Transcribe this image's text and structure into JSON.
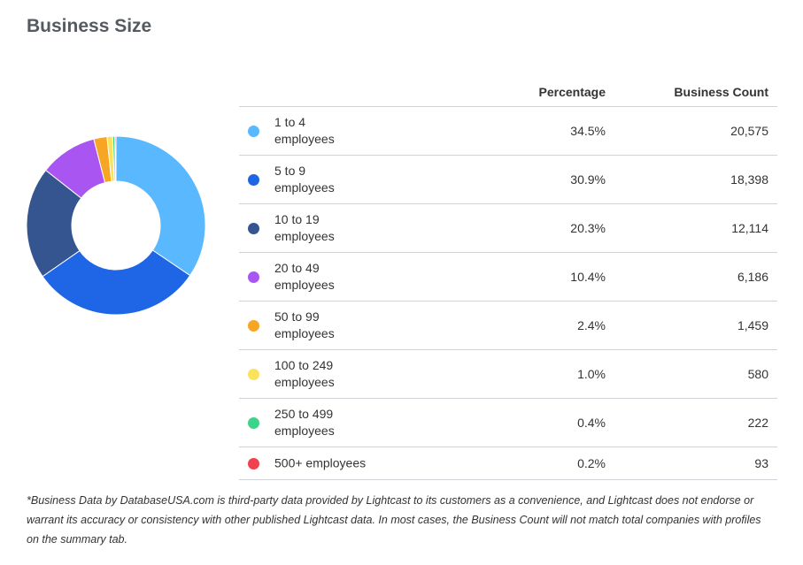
{
  "title": "Business Size",
  "table": {
    "col_percentage": "Percentage",
    "col_count": "Business Count"
  },
  "chart_data": {
    "type": "pie",
    "subtype": "donut",
    "categories": [
      "1 to 4 employees",
      "5 to 9 employees",
      "10 to 19 employees",
      "20 to 49 employees",
      "50 to 99 employees",
      "100 to 249 employees",
      "250 to 499 employees",
      "500+ employees"
    ],
    "labels": [
      [
        "1 to 4",
        "employees"
      ],
      [
        "5 to 9",
        "employees"
      ],
      [
        "10 to 19",
        "employees"
      ],
      [
        "20 to 49",
        "employees"
      ],
      [
        "50 to 99",
        "employees"
      ],
      [
        "100 to 249",
        "employees"
      ],
      [
        "250 to 499",
        "employees"
      ],
      [
        "500+ employees"
      ]
    ],
    "values": [
      34.5,
      30.9,
      20.3,
      10.4,
      2.4,
      1.0,
      0.4,
      0.2
    ],
    "percentage_labels": [
      "34.5%",
      "30.9%",
      "20.3%",
      "10.4%",
      "2.4%",
      "1.0%",
      "0.4%",
      "0.2%"
    ],
    "counts": [
      20575,
      18398,
      12114,
      6186,
      1459,
      580,
      222,
      93
    ],
    "count_labels": [
      "20,575",
      "18,398",
      "12,114",
      "6,186",
      "1,459",
      "580",
      "222",
      "93"
    ],
    "colors": [
      "#5ab8ff",
      "#1f66e6",
      "#34558f",
      "#a955f2",
      "#f7a524",
      "#fae35a",
      "#3ed38a",
      "#f1414f"
    ]
  },
  "footnote": "*Business Data by DatabaseUSA.com is third-party data provided by Lightcast to its customers as a convenience, and Lightcast does not endorse or warrant its accuracy or consistency with other published Lightcast data. In most cases, the Business Count will not match total companies with profiles on the summary tab."
}
